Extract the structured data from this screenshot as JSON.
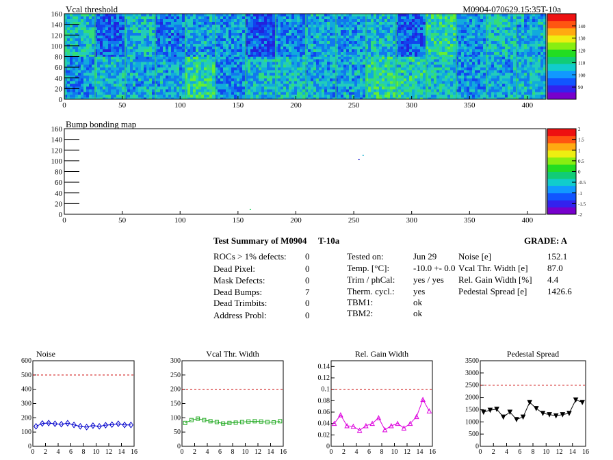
{
  "vcal_map": {
    "title": "Vcal threshold",
    "module_id": "M0904-070629.15:35T-10a",
    "x_ticks": [
      "0",
      "50",
      "100",
      "150",
      "200",
      "250",
      "300",
      "350",
      "400"
    ],
    "y_ticks": [
      "0",
      "20",
      "40",
      "60",
      "80",
      "100",
      "120",
      "140",
      "160"
    ],
    "colorbar_ticks": [
      "90",
      "100",
      "110",
      "120",
      "130",
      "140"
    ]
  },
  "bump_map": {
    "title": "Bump bonding map",
    "x_ticks": [
      "0",
      "50",
      "100",
      "150",
      "200",
      "250",
      "300",
      "350",
      "400"
    ],
    "y_ticks": [
      "0",
      "20",
      "40",
      "60",
      "80",
      "100",
      "120",
      "140",
      "160"
    ],
    "colorbar_ticks": [
      "-2",
      "-1.5",
      "-1",
      "-0.5",
      "0",
      "0.5",
      "1",
      "1.5",
      "2"
    ]
  },
  "summary": {
    "title": "Test Summary of M0904",
    "temp_label": "T-10a",
    "grade_label": "GRADE:  A",
    "defects": [
      {
        "label": "ROCs > 1% defects:",
        "value": "0"
      },
      {
        "label": "Dead Pixel:",
        "value": "0"
      },
      {
        "label": "Mask Defects:",
        "value": "0"
      },
      {
        "label": "Dead Bumps:",
        "value": "7"
      },
      {
        "label": "Dead Trimbits:",
        "value": "0"
      },
      {
        "label": "Address Probl:",
        "value": "0"
      }
    ],
    "conditions": [
      {
        "label": "Tested on:",
        "value": "Jun 29"
      },
      {
        "label": "Temp. [°C]:",
        "value": "-10.0 +- 0.0"
      },
      {
        "label": "Trim / phCal:",
        "value": "yes / yes"
      },
      {
        "label": "Therm. cycl.:",
        "value": "yes"
      },
      {
        "label": "TBM1:",
        "value": "ok"
      },
      {
        "label": "TBM2:",
        "value": "ok"
      }
    ],
    "results": [
      {
        "label": "Noise [e]",
        "value": "152.1"
      },
      {
        "label": "Vcal Thr. Width [e]",
        "value": "87.0"
      },
      {
        "label": "Rel. Gain Width [%]",
        "value": "4.4"
      },
      {
        "label": "Pedestal Spread [e]",
        "value": "1426.6"
      }
    ]
  },
  "chart_data": [
    {
      "type": "line",
      "title": "Noise",
      "color": "#0000cc",
      "marker": "diamond",
      "x": [
        0,
        1,
        2,
        3,
        4,
        5,
        6,
        7,
        8,
        9,
        10,
        11,
        12,
        13,
        14,
        15
      ],
      "values": [
        140,
        160,
        163,
        158,
        155,
        162,
        150,
        140,
        135,
        145,
        140,
        148,
        152,
        158,
        150,
        150
      ],
      "ylim": [
        0,
        600
      ],
      "xlim": [
        0,
        16
      ],
      "threshold": 500,
      "yticks": [
        "0",
        "100",
        "200",
        "300",
        "400",
        "500",
        "600"
      ],
      "xticks": [
        "0",
        "2",
        "4",
        "6",
        "8",
        "10",
        "12",
        "14",
        "16"
      ]
    },
    {
      "type": "line",
      "title": "Vcal Thr. Width",
      "color": "#22aa22",
      "marker": "square",
      "x": [
        0,
        1,
        2,
        3,
        4,
        5,
        6,
        7,
        8,
        9,
        10,
        11,
        12,
        13,
        14,
        15
      ],
      "values": [
        82,
        92,
        97,
        92,
        88,
        85,
        80,
        82,
        83,
        85,
        87,
        88,
        87,
        85,
        84,
        88
      ],
      "ylim": [
        0,
        300
      ],
      "xlim": [
        0,
        16
      ],
      "threshold": 200,
      "yticks": [
        "0",
        "50",
        "100",
        "150",
        "200",
        "250",
        "300"
      ],
      "xticks": [
        "0",
        "2",
        "4",
        "6",
        "8",
        "10",
        "12",
        "14",
        "16"
      ]
    },
    {
      "type": "line",
      "title": "Rel. Gain Width",
      "color": "#dd00dd",
      "marker": "triangle",
      "x": [
        0,
        1,
        2,
        3,
        4,
        5,
        6,
        7,
        8,
        9,
        10,
        11,
        12,
        13,
        14,
        15
      ],
      "values": [
        0.04,
        0.055,
        0.036,
        0.035,
        0.028,
        0.036,
        0.04,
        0.05,
        0.029,
        0.036,
        0.04,
        0.032,
        0.04,
        0.052,
        0.082,
        0.062
      ],
      "ylim": [
        0,
        0.15
      ],
      "xlim": [
        0,
        16
      ],
      "threshold": 0.1,
      "yticks": [
        "0",
        "0.02",
        "0.04",
        "0.06",
        "0.08",
        "0.1",
        "0.12",
        "0.14"
      ],
      "xticks": [
        "0",
        "2",
        "4",
        "6",
        "8",
        "10",
        "12",
        "14",
        "16"
      ]
    },
    {
      "type": "line",
      "title": "Pedestal Spread",
      "color": "#000000",
      "marker": "invtriangle",
      "x": [
        0,
        1,
        2,
        3,
        4,
        5,
        6,
        7,
        8,
        9,
        10,
        11,
        12,
        13,
        14,
        15
      ],
      "values": [
        1400,
        1480,
        1520,
        1200,
        1400,
        1100,
        1200,
        1800,
        1550,
        1350,
        1300,
        1250,
        1300,
        1350,
        1900,
        1800
      ],
      "ylim": [
        0,
        3500
      ],
      "xlim": [
        0,
        16
      ],
      "threshold": 2500,
      "yticks": [
        "0",
        "500",
        "1000",
        "1500",
        "2000",
        "2500",
        "3000",
        "3500"
      ],
      "xticks": [
        "0",
        "2",
        "4",
        "6",
        "8",
        "10",
        "12",
        "14",
        "16"
      ]
    }
  ]
}
